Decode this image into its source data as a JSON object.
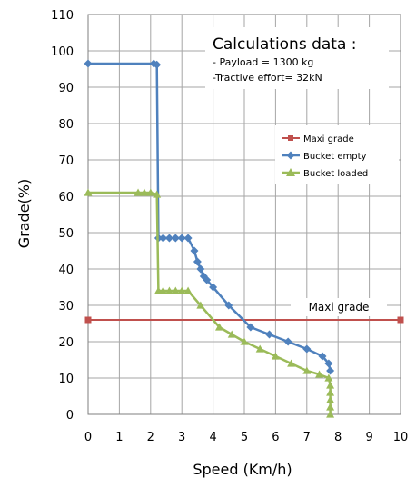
{
  "chart_data": {
    "type": "line",
    "xlabel": "Speed (Km/h)",
    "ylabel": "Grade(%)",
    "xlim": [
      0,
      10
    ],
    "ylim": [
      0,
      110
    ],
    "xticks": [
      0,
      1,
      2,
      3,
      4,
      5,
      6,
      7,
      8,
      9,
      10
    ],
    "yticks": [
      0,
      10,
      20,
      30,
      40,
      50,
      60,
      70,
      80,
      90,
      100,
      110
    ],
    "xtick_labels": [
      "0",
      "1",
      "2",
      "3",
      "4",
      "5",
      "6",
      "7",
      "8",
      "9",
      "10"
    ],
    "ytick_labels": [
      "0",
      "10",
      "20",
      "30",
      "40",
      "50",
      "60",
      "70",
      "80",
      "90",
      "100",
      "110"
    ],
    "grid": true,
    "legend_position": "right",
    "series": [
      {
        "name": "Maxi grade",
        "color": "#c0504d",
        "marker": "square",
        "points": [
          [
            0,
            26
          ],
          [
            10,
            26
          ]
        ]
      },
      {
        "name": "Bucket empty",
        "color": "#4f81bd",
        "marker": "diamond",
        "points": [
          [
            0,
            96.5
          ],
          [
            2.1,
            96.5
          ],
          [
            2.2,
            96.2
          ],
          [
            2.25,
            48.5
          ],
          [
            2.4,
            48.5
          ],
          [
            2.6,
            48.5
          ],
          [
            2.8,
            48.5
          ],
          [
            3.0,
            48.5
          ],
          [
            3.2,
            48.5
          ],
          [
            3.4,
            45
          ],
          [
            3.5,
            42
          ],
          [
            3.6,
            40
          ],
          [
            3.7,
            38
          ],
          [
            3.8,
            37
          ],
          [
            4.0,
            35
          ],
          [
            4.5,
            30
          ],
          [
            5.2,
            24
          ],
          [
            5.8,
            22
          ],
          [
            6.4,
            20
          ],
          [
            7.0,
            18
          ],
          [
            7.5,
            16
          ],
          [
            7.7,
            14
          ],
          [
            7.75,
            12
          ]
        ]
      },
      {
        "name": "Bucket loaded",
        "color": "#9bbb59",
        "marker": "triangle",
        "points": [
          [
            0,
            61
          ],
          [
            1.6,
            61
          ],
          [
            1.8,
            61
          ],
          [
            2.0,
            61
          ],
          [
            2.2,
            60.5
          ],
          [
            2.25,
            34
          ],
          [
            2.4,
            34
          ],
          [
            2.6,
            34
          ],
          [
            2.8,
            34
          ],
          [
            3.0,
            34
          ],
          [
            3.2,
            34
          ],
          [
            3.6,
            30
          ],
          [
            4.2,
            24
          ],
          [
            4.6,
            22
          ],
          [
            5.0,
            20
          ],
          [
            5.5,
            18
          ],
          [
            6.0,
            16
          ],
          [
            6.5,
            14
          ],
          [
            7.0,
            12
          ],
          [
            7.4,
            11
          ],
          [
            7.7,
            10
          ],
          [
            7.75,
            8
          ],
          [
            7.75,
            6
          ],
          [
            7.75,
            4
          ],
          [
            7.75,
            2
          ],
          [
            7.75,
            0
          ]
        ]
      }
    ],
    "reference_label": "Maxi grade",
    "annotation": {
      "title": "Calculations data :",
      "lines": [
        "- Payload = 1300 kg",
        "-Tractive effort= 32kN"
      ]
    }
  }
}
